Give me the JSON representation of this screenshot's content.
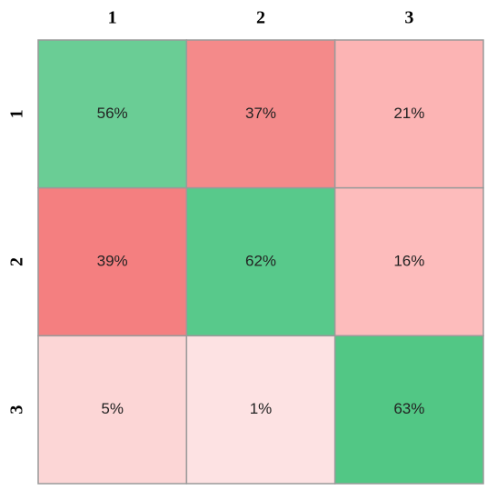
{
  "chart_data": {
    "type": "heatmap",
    "x_categories": [
      "1",
      "2",
      "3"
    ],
    "y_categories": [
      "1",
      "2",
      "3"
    ],
    "values": [
      [
        56,
        37,
        21
      ],
      [
        39,
        62,
        16
      ],
      [
        5,
        1,
        63
      ]
    ],
    "value_labels": [
      [
        "56%",
        "37%",
        "21%"
      ],
      [
        "39%",
        "62%",
        "16%"
      ],
      [
        "5%",
        "1%",
        "63%"
      ]
    ],
    "colors": [
      [
        "#6acd95",
        "#f48a8a",
        "#fcb4b4"
      ],
      [
        "#f47f80",
        "#58c98b",
        "#fdbcbc"
      ],
      [
        "#fcd6d6",
        "#fde2e3",
        "#52c785"
      ]
    ]
  }
}
